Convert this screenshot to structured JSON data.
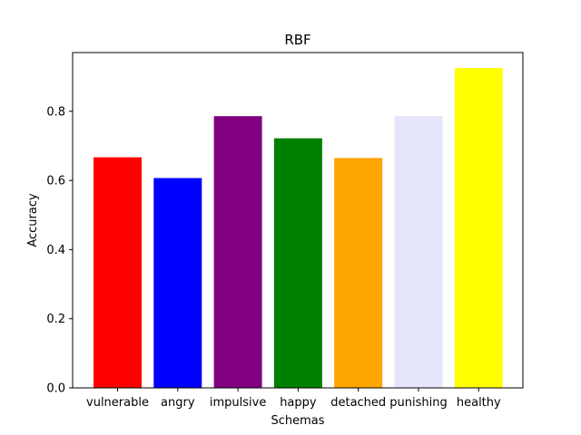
{
  "chart_data": {
    "type": "bar",
    "title": "RBF",
    "xlabel": "Schemas",
    "ylabel": "Accuracy",
    "categories": [
      "vulnerable",
      "angry",
      "impulsive",
      "happy",
      "detached",
      "punishing",
      "healthy"
    ],
    "values": [
      0.667,
      0.607,
      0.786,
      0.722,
      0.665,
      0.786,
      0.925
    ],
    "colors": [
      "#ff0000",
      "#0000ff",
      "#800080",
      "#008000",
      "#ffa500",
      "#e6e6fa",
      "#ffff00"
    ],
    "ylim": [
      0,
      0.97
    ],
    "yticks": [
      "0.0",
      "0.2",
      "0.4",
      "0.6",
      "0.8"
    ],
    "grid": false,
    "legend": "none"
  }
}
